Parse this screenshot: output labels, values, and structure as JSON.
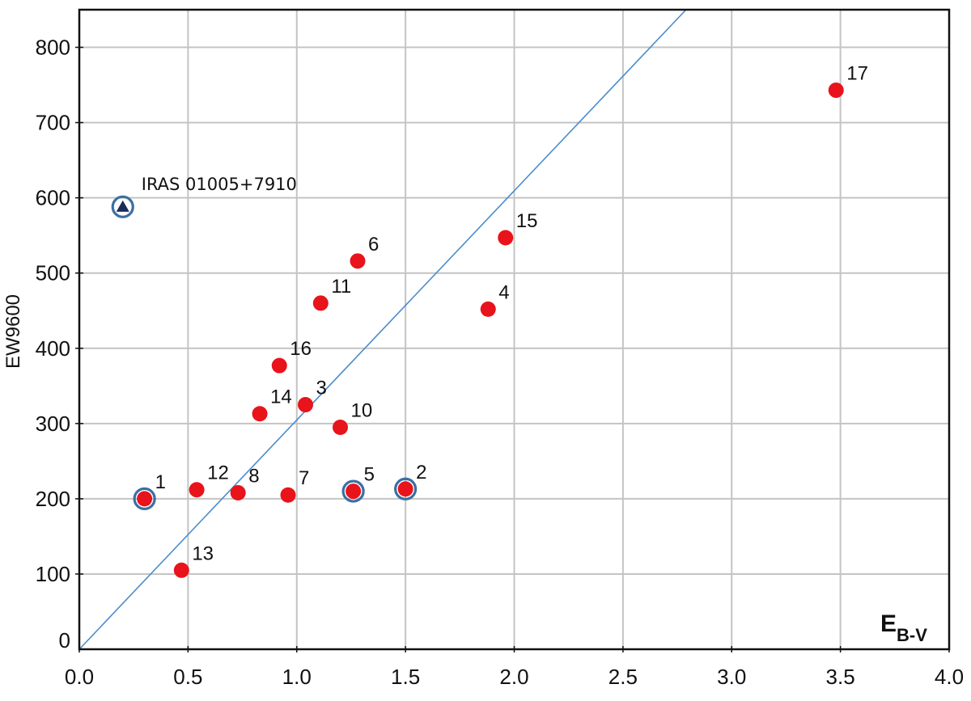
{
  "chart_data": {
    "type": "scatter",
    "title": "",
    "xlabel_main": "E",
    "xlabel_sub": "B-V",
    "ylabel": "EW9600",
    "xlim": [
      0.0,
      4.0
    ],
    "ylim": [
      0,
      850
    ],
    "x_ticks": [
      0.0,
      0.5,
      1.0,
      1.5,
      2.0,
      2.5,
      3.0,
      3.5,
      4.0
    ],
    "x_tick_labels": [
      "0.0",
      "0.5",
      "1.0",
      "1.5",
      "2.0",
      "2.5",
      "3.0",
      "3.5",
      "4.0"
    ],
    "y_ticks": [
      0,
      100,
      200,
      300,
      400,
      500,
      600,
      700,
      800
    ],
    "y_tick_labels": [
      "0",
      "100",
      "200",
      "300",
      "400",
      "500",
      "600",
      "700",
      "800"
    ],
    "grid": true,
    "colors": {
      "point": "#e8131b",
      "ring": "#3a6fa3",
      "line": "#4a8ccc",
      "triangle": "#1a2c5a",
      "grid": "#c4c4c4"
    },
    "points": [
      {
        "label": "1",
        "x": 0.3,
        "y": 200,
        "ring": true
      },
      {
        "label": "2",
        "x": 1.5,
        "y": 213,
        "ring": true
      },
      {
        "label": "3",
        "x": 1.04,
        "y": 325,
        "ring": false
      },
      {
        "label": "4",
        "x": 1.88,
        "y": 452,
        "ring": false
      },
      {
        "label": "5",
        "x": 1.26,
        "y": 210,
        "ring": true
      },
      {
        "label": "6",
        "x": 1.28,
        "y": 516,
        "ring": false
      },
      {
        "label": "7",
        "x": 0.96,
        "y": 205,
        "ring": false
      },
      {
        "label": "8",
        "x": 0.73,
        "y": 208,
        "ring": false
      },
      {
        "label": "10",
        "x": 1.2,
        "y": 295,
        "ring": false
      },
      {
        "label": "11",
        "x": 1.11,
        "y": 460,
        "ring": false
      },
      {
        "label": "12",
        "x": 0.54,
        "y": 212,
        "ring": false
      },
      {
        "label": "13",
        "x": 0.47,
        "y": 105,
        "ring": false
      },
      {
        "label": "14",
        "x": 0.83,
        "y": 313,
        "ring": false
      },
      {
        "label": "15",
        "x": 1.96,
        "y": 547,
        "ring": false
      },
      {
        "label": "16",
        "x": 0.92,
        "y": 377,
        "ring": false
      },
      {
        "label": "17",
        "x": 3.48,
        "y": 743,
        "ring": false
      }
    ],
    "special_point": {
      "label": "IRAS 01005+7910",
      "x": 0.2,
      "y": 588,
      "marker": "triangle-in-circle"
    },
    "fit_line": {
      "x1": 0.0,
      "y1": 0,
      "x2": 2.79,
      "y2": 850
    }
  }
}
